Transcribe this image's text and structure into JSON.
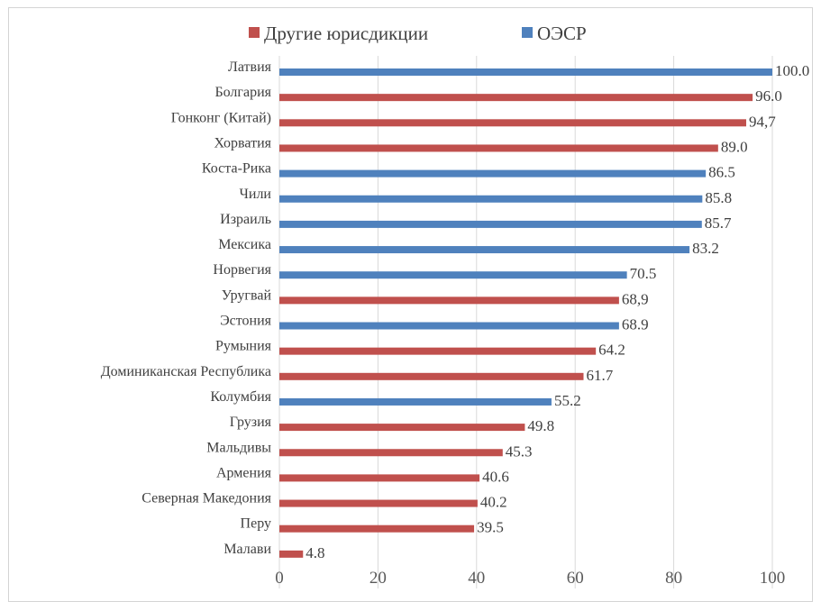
{
  "chart_data": {
    "type": "bar",
    "orientation": "horizontal",
    "title": "",
    "xlabel": "",
    "ylabel": "",
    "xlim": [
      0,
      100
    ],
    "x_ticks": [
      "0",
      "20",
      "40",
      "60",
      "80",
      "100"
    ],
    "grid": "vertical",
    "legend": {
      "position": "top",
      "items": [
        {
          "name": "Другие юрисдикции",
          "color": "#c0504d"
        },
        {
          "name": "ОЭСР",
          "color": "#4f81bd"
        }
      ]
    },
    "bars": [
      {
        "category": "Латвия",
        "value": 100.0,
        "label": "100.0",
        "group": "ОЭСР"
      },
      {
        "category": "Болгария",
        "value": 96.0,
        "label": "96.0",
        "group": "Другие юрисдикции"
      },
      {
        "category": "Гонконг (Китай)",
        "value": 94.7,
        "label": "94,7",
        "group": "Другие юрисдикции"
      },
      {
        "category": "Хорватия",
        "value": 89.0,
        "label": "89.0",
        "group": "Другие юрисдикции"
      },
      {
        "category": "Коста-Рика",
        "value": 86.5,
        "label": "86.5",
        "group": "ОЭСР"
      },
      {
        "category": "Чили",
        "value": 85.8,
        "label": "85.8",
        "group": "ОЭСР"
      },
      {
        "category": "Израиль",
        "value": 85.7,
        "label": "85.7",
        "group": "ОЭСР"
      },
      {
        "category": "Мексика",
        "value": 83.2,
        "label": "83.2",
        "group": "ОЭСР"
      },
      {
        "category": "Норвегия",
        "value": 70.5,
        "label": "70.5",
        "group": "ОЭСР"
      },
      {
        "category": "Уругвай",
        "value": 68.9,
        "label": "68,9",
        "group": "Другие юрисдикции"
      },
      {
        "category": "Эстония",
        "value": 68.9,
        "label": "68.9",
        "group": "ОЭСР"
      },
      {
        "category": "Румыния",
        "value": 64.2,
        "label": "64.2",
        "group": "Другие юрисдикции"
      },
      {
        "category": "Доминиканская Республика",
        "value": 61.7,
        "label": "61.7",
        "group": "Другие юрисдикции"
      },
      {
        "category": "Колумбия",
        "value": 55.2,
        "label": "55.2",
        "group": "ОЭСР"
      },
      {
        "category": "Грузия",
        "value": 49.8,
        "label": "49.8",
        "group": "Другие юрисдикции"
      },
      {
        "category": "Мальдивы",
        "value": 45.3,
        "label": "45.3",
        "group": "Другие юрисдикции"
      },
      {
        "category": "Армения",
        "value": 40.6,
        "label": "40.6",
        "group": "Другие юрисдикции"
      },
      {
        "category": "Северная Македония",
        "value": 40.2,
        "label": "40.2",
        "group": "Другие юрисдикции"
      },
      {
        "category": "Перу",
        "value": 39.5,
        "label": "39.5",
        "group": "Другие юрисдикции"
      },
      {
        "category": "Малави",
        "value": 4.8,
        "label": "4.8",
        "group": "Другие юрисдикции"
      }
    ]
  }
}
